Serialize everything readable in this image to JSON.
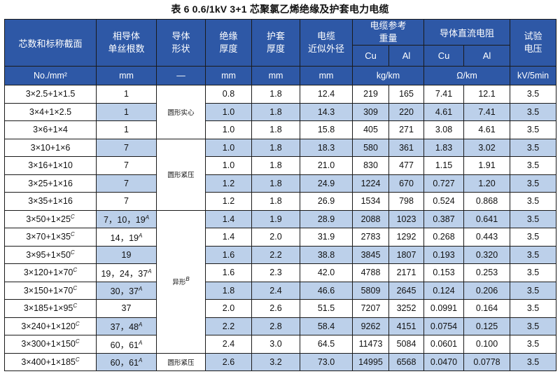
{
  "caption": "表 6   0.6/1kV 3+1 芯聚氯乙烯绝缘及护套电力电缆",
  "headers": {
    "section": "芯数和标称截面",
    "wire_count_l1": "相导体",
    "wire_count_l2": "单丝根数",
    "conductor_shape_l1": "导体",
    "conductor_shape_l2": "形状",
    "insulation_l1": "绝缘",
    "insulation_l2": "厚度",
    "sheath_l1": "护套",
    "sheath_l2": "厚度",
    "diameter_l1": "电缆",
    "diameter_l2": "近似外径",
    "weight_l1": "电缆参考",
    "weight_l2": "重量",
    "resistance": "导体直流电阻",
    "test_l1": "试验",
    "test_l2": "电压",
    "cu": "Cu",
    "al": "Al"
  },
  "units": {
    "section": "No./mm²",
    "wire_count": "mm",
    "shape": "—",
    "insulation": "mm",
    "sheath": "mm",
    "diameter": "mm",
    "weight": "kg/km",
    "resistance": "Ω/km",
    "test": "kV/5min"
  },
  "shapes": {
    "solid": "圆形实心",
    "compact": "圆形紧压",
    "sector": "异形",
    "sector_note": "B",
    "compact_last": "圆形紧压"
  },
  "rows": [
    {
      "section": "3×2.5+1×1.5",
      "section_note": "",
      "wires": "1",
      "wires_note": "",
      "insulation": "0.8",
      "sheath": "1.8",
      "diameter": "12.4",
      "weight_cu": "219",
      "weight_al": "165",
      "res_cu": "7.41",
      "res_al": "12.1",
      "test": "3.5"
    },
    {
      "section": "3×4+1×2.5",
      "section_note": "",
      "wires": "1",
      "wires_note": "",
      "insulation": "1.0",
      "sheath": "1.8",
      "diameter": "14.3",
      "weight_cu": "309",
      "weight_al": "220",
      "res_cu": "4.61",
      "res_al": "7.41",
      "test": "3.5"
    },
    {
      "section": "3×6+1×4",
      "section_note": "",
      "wires": "1",
      "wires_note": "",
      "insulation": "1.0",
      "sheath": "1.8",
      "diameter": "15.8",
      "weight_cu": "405",
      "weight_al": "271",
      "res_cu": "3.08",
      "res_al": "4.61",
      "test": "3.5"
    },
    {
      "section": "3×10+1×6",
      "section_note": "",
      "wires": "7",
      "wires_note": "",
      "insulation": "1.0",
      "sheath": "1.8",
      "diameter": "18.3",
      "weight_cu": "580",
      "weight_al": "361",
      "res_cu": "1.83",
      "res_al": "3.02",
      "test": "3.5"
    },
    {
      "section": "3×16+1×10",
      "section_note": "",
      "wires": "7",
      "wires_note": "",
      "insulation": "1.0",
      "sheath": "1.8",
      "diameter": "21.0",
      "weight_cu": "830",
      "weight_al": "477",
      "res_cu": "1.15",
      "res_al": "1.91",
      "test": "3.5"
    },
    {
      "section": "3×25+1×16",
      "section_note": "",
      "wires": "7",
      "wires_note": "",
      "insulation": "1.2",
      "sheath": "1.8",
      "diameter": "24.9",
      "weight_cu": "1224",
      "weight_al": "670",
      "res_cu": "0.727",
      "res_al": "1.20",
      "test": "3.5"
    },
    {
      "section": "3×35+1×16",
      "section_note": "",
      "wires": "7",
      "wires_note": "",
      "insulation": "1.2",
      "sheath": "1.8",
      "diameter": "26.9",
      "weight_cu": "1534",
      "weight_al": "798",
      "res_cu": "0.524",
      "res_al": "0.868",
      "test": "3.5"
    },
    {
      "section": "3×50+1×25",
      "section_note": "C",
      "wires": "7，10，19",
      "wires_note": "A",
      "insulation": "1.4",
      "sheath": "1.9",
      "diameter": "28.9",
      "weight_cu": "2088",
      "weight_al": "1023",
      "res_cu": "0.387",
      "res_al": "0.641",
      "test": "3.5"
    },
    {
      "section": "3×70+1×35",
      "section_note": "C",
      "wires": "14，19",
      "wires_note": "A",
      "insulation": "1.4",
      "sheath": "2.0",
      "diameter": "31.9",
      "weight_cu": "2783",
      "weight_al": "1292",
      "res_cu": "0.268",
      "res_al": "0.443",
      "test": "3.5"
    },
    {
      "section": "3×95+1×50",
      "section_note": "C",
      "wires": "19",
      "wires_note": "",
      "insulation": "1.6",
      "sheath": "2.2",
      "diameter": "38.8",
      "weight_cu": "3845",
      "weight_al": "1807",
      "res_cu": "0.193",
      "res_al": "0.320",
      "test": "3.5"
    },
    {
      "section": "3×120+1×70",
      "section_note": "C",
      "wires": "19，24，37",
      "wires_note": "A",
      "insulation": "1.6",
      "sheath": "2.3",
      "diameter": "42.0",
      "weight_cu": "4788",
      "weight_al": "2171",
      "res_cu": "0.153",
      "res_al": "0.253",
      "test": "3.5"
    },
    {
      "section": "3×150+1×70",
      "section_note": "C",
      "wires": "30，37",
      "wires_note": "A",
      "insulation": "1.8",
      "sheath": "2.4",
      "diameter": "46.6",
      "weight_cu": "5809",
      "weight_al": "2645",
      "res_cu": "0.124",
      "res_al": "0.206",
      "test": "3.5"
    },
    {
      "section": "3×185+1×95",
      "section_note": "C",
      "wires": "37",
      "wires_note": "",
      "insulation": "2.0",
      "sheath": "2.6",
      "diameter": "51.5",
      "weight_cu": "7207",
      "weight_al": "3252",
      "res_cu": "0.0991",
      "res_al": "0.164",
      "test": "3.5"
    },
    {
      "section": "3×240+1×120",
      "section_note": "C",
      "wires": "37，48",
      "wires_note": "A",
      "insulation": "2.2",
      "sheath": "2.8",
      "diameter": "58.4",
      "weight_cu": "9262",
      "weight_al": "4151",
      "res_cu": "0.0754",
      "res_al": "0.125",
      "test": "3.5"
    },
    {
      "section": "3×300+1×150",
      "section_note": "C",
      "wires": "60，61",
      "wires_note": "A",
      "insulation": "2.4",
      "sheath": "3.0",
      "diameter": "64.5",
      "weight_cu": "11473",
      "weight_al": "5084",
      "res_cu": "0.0601",
      "res_al": "0.100",
      "test": "3.5"
    },
    {
      "section": "3×400+1×185",
      "section_note": "C",
      "wires": "60，61",
      "wires_note": "A",
      "insulation": "2.6",
      "sheath": "3.2",
      "diameter": "73.0",
      "weight_cu": "14995",
      "weight_al": "6568",
      "res_cu": "0.0470",
      "res_al": "0.0778",
      "test": "3.5"
    }
  ]
}
